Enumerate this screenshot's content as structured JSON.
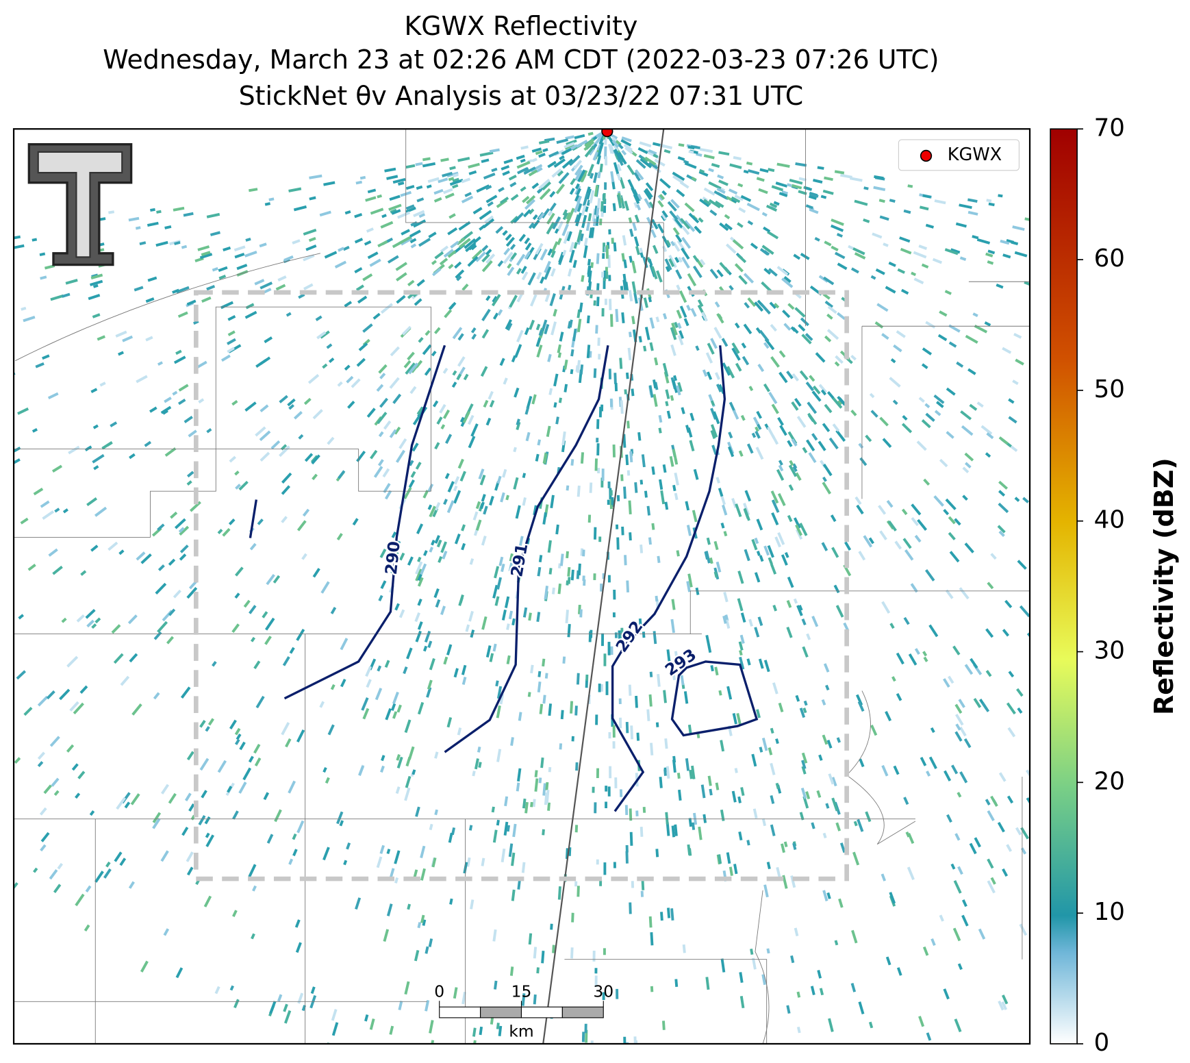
{
  "chart_data": {
    "type": "radar_map",
    "title": [
      "KGWX Reflectivity",
      "Wednesday, March 23 at 02:26 AM CDT (2022-03-23 07:26 UTC)",
      "StickNet θv Analysis at 03/23/22 07:31 UTC"
    ],
    "legend": [
      "KGWX"
    ],
    "colorbar": {
      "label": "Reflectivity (dBZ)",
      "lim": [
        0,
        70
      ],
      "ticks": [
        0,
        10,
        20,
        30,
        40,
        50,
        60,
        70
      ]
    },
    "contours": [
      290,
      291,
      292,
      293
    ],
    "scalebar": {
      "ticks": [
        0,
        15,
        30
      ],
      "unit": "km"
    }
  }
}
